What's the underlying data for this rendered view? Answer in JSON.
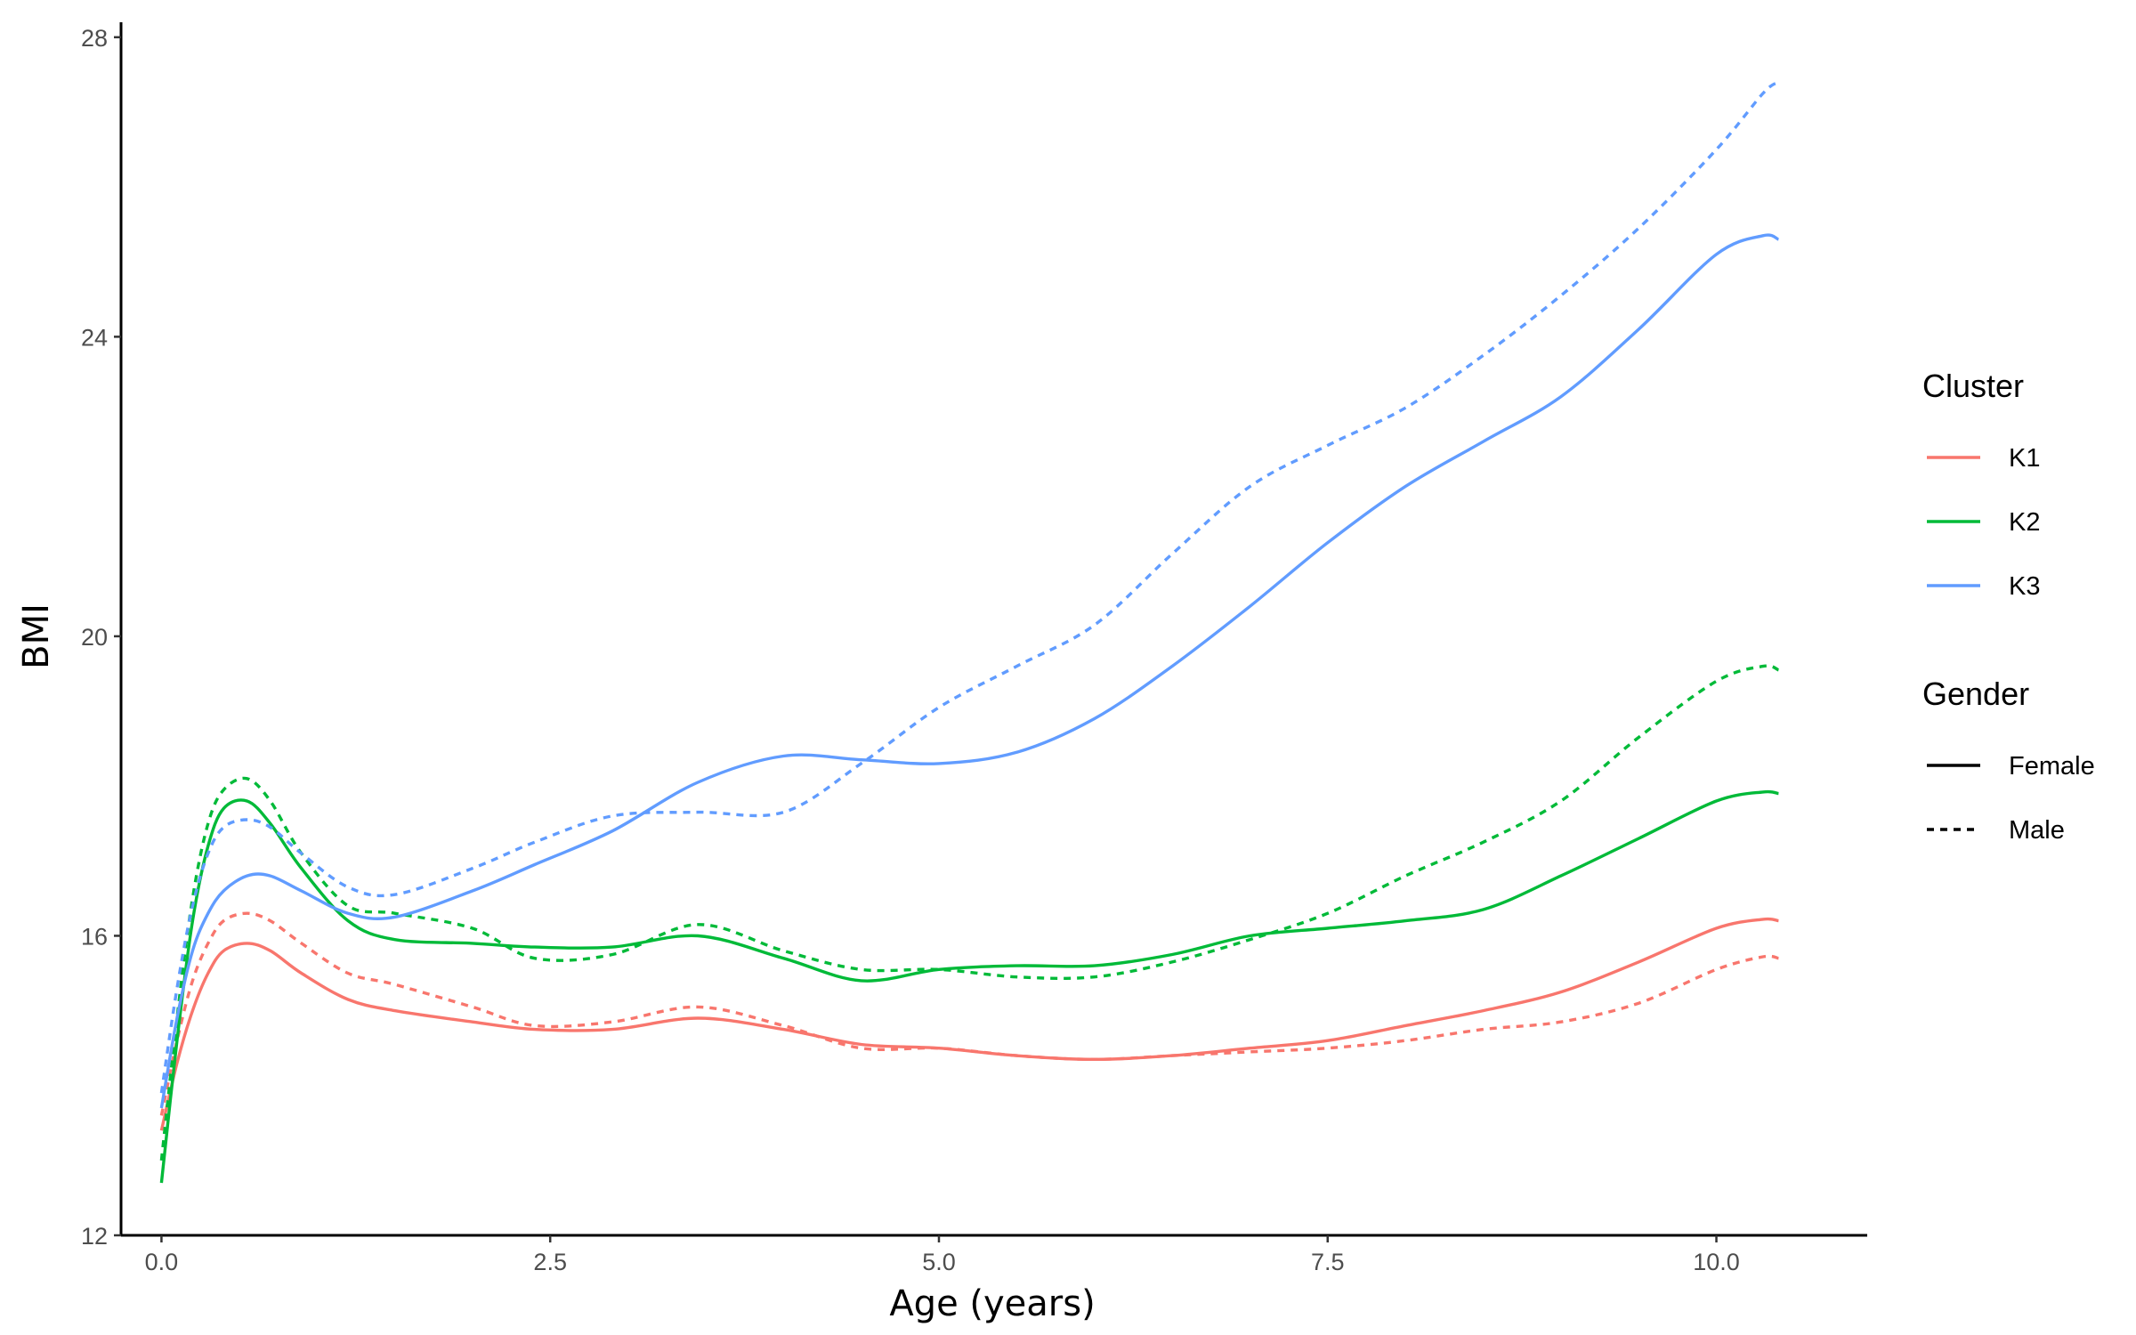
{
  "chart_data": {
    "type": "line",
    "title": "",
    "xlabel": "Age (years)",
    "ylabel": "BMI",
    "xlim": [
      -0.26,
      10.97
    ],
    "ylim": [
      12,
      28.2
    ],
    "xticks": [
      0.0,
      2.5,
      5.0,
      7.5,
      10.0
    ],
    "xtick_labels": [
      "0.0",
      "2.5",
      "5.0",
      "7.5",
      "10.0"
    ],
    "yticks": [
      12,
      16,
      20,
      24,
      28
    ],
    "ytick_labels": [
      "12",
      "16",
      "20",
      "24",
      "28"
    ],
    "grid": false,
    "legend_placement": "right",
    "legends": [
      {
        "title": "Cluster",
        "entries": [
          {
            "label": "K1",
            "color": "#F8766D"
          },
          {
            "label": "K2",
            "color": "#00BA38"
          },
          {
            "label": "K3",
            "color": "#619CFF"
          }
        ]
      },
      {
        "title": "Gender",
        "entries": [
          {
            "label": "Female",
            "linetype": "solid"
          },
          {
            "label": "Male",
            "linetype": "dashed"
          }
        ]
      }
    ],
    "series": [
      {
        "cluster": "K1",
        "gender": "Female",
        "color": "#F8766D",
        "linetype": "solid",
        "x": [
          0,
          0.1,
          0.2,
          0.3,
          0.4,
          0.55,
          0.7,
          0.9,
          1.2,
          1.5,
          2.0,
          2.4,
          2.9,
          3.45,
          4.0,
          4.5,
          5.0,
          5.5,
          6.0,
          6.5,
          7.0,
          7.5,
          8.0,
          8.5,
          9.0,
          9.5,
          10.0,
          10.3,
          10.4
        ],
        "y": [
          13.4,
          14.3,
          15.0,
          15.5,
          15.8,
          15.9,
          15.8,
          15.5,
          15.15,
          15.0,
          14.85,
          14.75,
          14.75,
          14.9,
          14.75,
          14.55,
          14.5,
          14.4,
          14.35,
          14.4,
          14.5,
          14.6,
          14.8,
          15.0,
          15.25,
          15.65,
          16.1,
          16.22,
          16.2
        ]
      },
      {
        "cluster": "K1",
        "gender": "Male",
        "color": "#F8766D",
        "linetype": "dashed",
        "x": [
          0,
          0.1,
          0.2,
          0.3,
          0.4,
          0.55,
          0.7,
          0.9,
          1.2,
          1.5,
          2.0,
          2.4,
          2.9,
          3.45,
          4.0,
          4.5,
          5.0,
          5.5,
          6.0,
          6.5,
          7.0,
          7.5,
          8.0,
          8.5,
          9.0,
          9.5,
          10.0,
          10.3,
          10.4
        ],
        "y": [
          13.6,
          14.6,
          15.4,
          15.9,
          16.2,
          16.3,
          16.2,
          15.9,
          15.5,
          15.35,
          15.05,
          14.8,
          14.85,
          15.05,
          14.8,
          14.5,
          14.5,
          14.4,
          14.35,
          14.4,
          14.45,
          14.5,
          14.6,
          14.75,
          14.85,
          15.1,
          15.55,
          15.72,
          15.7
        ]
      },
      {
        "cluster": "K2",
        "gender": "Female",
        "color": "#00BA38",
        "linetype": "solid",
        "x": [
          0,
          0.1,
          0.2,
          0.3,
          0.4,
          0.55,
          0.7,
          0.9,
          1.2,
          1.5,
          2.0,
          2.4,
          2.9,
          3.45,
          4.0,
          4.5,
          5.0,
          5.5,
          6.0,
          6.5,
          7.0,
          7.5,
          8.0,
          8.5,
          9.0,
          9.5,
          10.0,
          10.3,
          10.4
        ],
        "y": [
          12.7,
          14.6,
          16.2,
          17.2,
          17.7,
          17.8,
          17.5,
          16.9,
          16.2,
          15.95,
          15.9,
          15.85,
          15.85,
          16.0,
          15.7,
          15.4,
          15.55,
          15.6,
          15.6,
          15.75,
          16.0,
          16.1,
          16.2,
          16.35,
          16.8,
          17.3,
          17.8,
          17.92,
          17.9
        ]
      },
      {
        "cluster": "K2",
        "gender": "Male",
        "color": "#00BA38",
        "linetype": "dashed",
        "x": [
          0,
          0.1,
          0.2,
          0.3,
          0.4,
          0.55,
          0.7,
          0.9,
          1.2,
          1.5,
          2.0,
          2.4,
          2.9,
          3.45,
          4.0,
          4.5,
          5.0,
          5.5,
          6.0,
          6.5,
          7.0,
          7.5,
          8.0,
          8.5,
          9.0,
          9.5,
          10.0,
          10.3,
          10.4
        ],
        "y": [
          13.0,
          14.9,
          16.5,
          17.5,
          17.95,
          18.1,
          17.8,
          17.1,
          16.4,
          16.3,
          16.1,
          15.7,
          15.75,
          16.15,
          15.8,
          15.55,
          15.55,
          15.45,
          15.45,
          15.65,
          15.95,
          16.3,
          16.8,
          17.25,
          17.8,
          18.65,
          19.4,
          19.6,
          19.55
        ]
      },
      {
        "cluster": "K3",
        "gender": "Female",
        "color": "#619CFF",
        "linetype": "solid",
        "x": [
          0,
          0.1,
          0.2,
          0.3,
          0.4,
          0.55,
          0.7,
          0.9,
          1.2,
          1.5,
          2.0,
          2.4,
          2.9,
          3.45,
          4.0,
          4.5,
          5.0,
          5.5,
          6.0,
          6.5,
          7.0,
          7.5,
          8.0,
          8.5,
          9.0,
          9.5,
          10.0,
          10.3,
          10.4
        ],
        "y": [
          13.7,
          14.9,
          15.8,
          16.3,
          16.6,
          16.8,
          16.8,
          16.6,
          16.3,
          16.25,
          16.6,
          16.95,
          17.4,
          18.05,
          18.4,
          18.35,
          18.3,
          18.45,
          18.9,
          19.6,
          20.4,
          21.25,
          22.0,
          22.6,
          23.2,
          24.1,
          25.1,
          25.35,
          25.3
        ]
      },
      {
        "cluster": "K3",
        "gender": "Male",
        "color": "#619CFF",
        "linetype": "dashed",
        "x": [
          0,
          0.1,
          0.2,
          0.3,
          0.4,
          0.55,
          0.7,
          0.9,
          1.2,
          1.5,
          2.0,
          2.4,
          2.9,
          3.45,
          4.0,
          4.5,
          5.0,
          5.5,
          6.0,
          6.5,
          7.0,
          7.5,
          8.0,
          8.5,
          9.0,
          9.5,
          10.0,
          10.3,
          10.4
        ],
        "y": [
          13.9,
          15.3,
          16.4,
          17.1,
          17.45,
          17.55,
          17.45,
          17.1,
          16.65,
          16.55,
          16.9,
          17.25,
          17.6,
          17.65,
          17.65,
          18.3,
          19.05,
          19.6,
          20.15,
          21.1,
          22.0,
          22.55,
          23.05,
          23.75,
          24.55,
          25.45,
          26.5,
          27.25,
          27.4
        ]
      }
    ]
  }
}
